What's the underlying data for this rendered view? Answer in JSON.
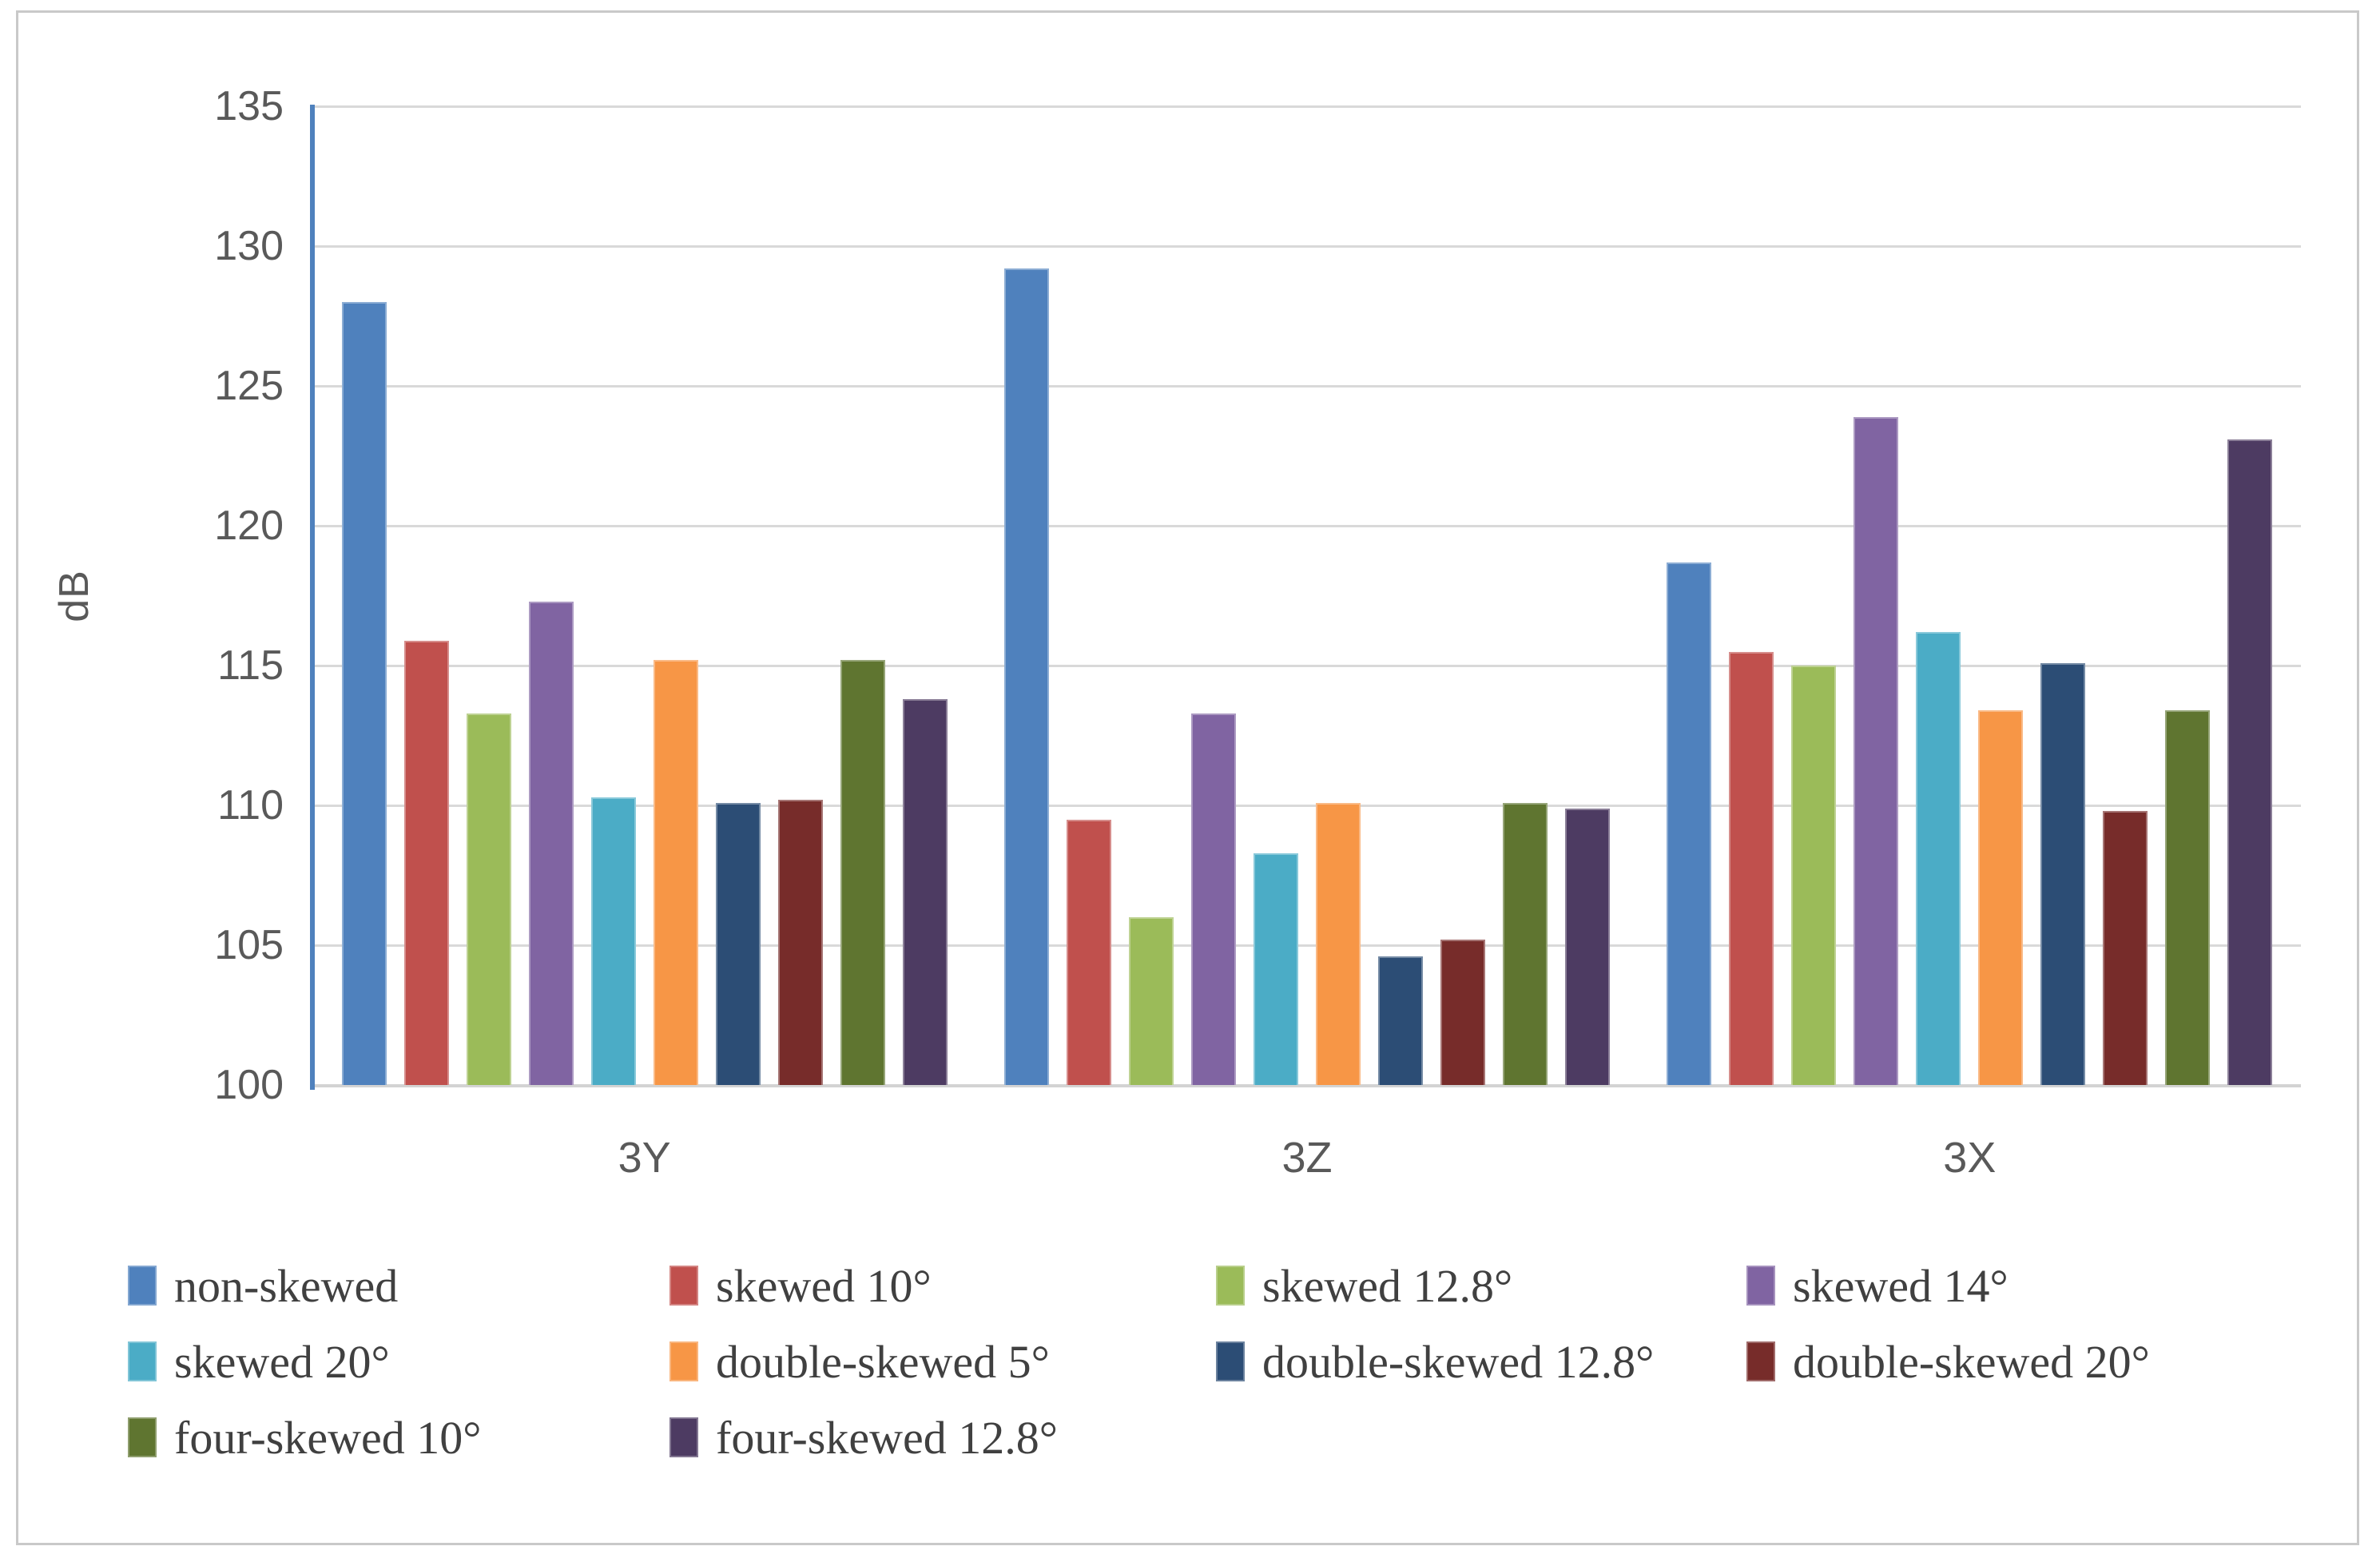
{
  "figure": {
    "background": "#FFFFFF",
    "border_color": "#C9C9C9"
  },
  "chart_data": {
    "type": "bar",
    "title": "",
    "xlabel": "",
    "ylabel": "dB",
    "categories": [
      "3Y",
      "3Z",
      "3X"
    ],
    "ylim": [
      100,
      135
    ],
    "yticks": [
      135,
      130,
      125,
      120,
      115,
      110,
      105,
      100
    ],
    "grid": true,
    "legend_position": "bottom",
    "axis_line_color": "#4F81BD",
    "gridline_color": "#D9D9D9",
    "tick_label_color": "#595959",
    "legend_text_color": "#404040",
    "series": [
      {
        "name": "non-skewed",
        "color": "#4F81BD",
        "values": [
          128.0,
          129.2,
          118.7
        ]
      },
      {
        "name": "skewed 10°",
        "color": "#C0504D",
        "values": [
          115.9,
          109.5,
          115.5
        ]
      },
      {
        "name": "skewed 12.8°",
        "color": "#9BBB59",
        "values": [
          113.3,
          106.0,
          115.0
        ]
      },
      {
        "name": "skewed 14°",
        "color": "#8064A2",
        "values": [
          117.3,
          113.3,
          123.9
        ]
      },
      {
        "name": "skewed 20°",
        "color": "#4BACC6",
        "values": [
          110.3,
          108.3,
          116.2
        ]
      },
      {
        "name": "double-skewed 5°",
        "color": "#F79646",
        "values": [
          115.2,
          110.1,
          113.4
        ]
      },
      {
        "name": "double-skewed 12.8°",
        "color": "#2C4D75",
        "values": [
          110.1,
          104.6,
          115.1
        ]
      },
      {
        "name": "double-skewed 20°",
        "color": "#772C2A",
        "values": [
          110.2,
          105.2,
          109.8
        ]
      },
      {
        "name": "four-skewed 10°",
        "color": "#5F7530",
        "values": [
          115.2,
          110.1,
          113.4
        ]
      },
      {
        "name": "four-skewed 12.8°",
        "color": "#4D3B62",
        "values": [
          113.8,
          109.9,
          123.1
        ]
      }
    ]
  }
}
